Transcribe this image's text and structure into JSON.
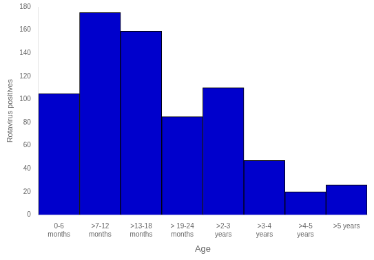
{
  "chart_data": {
    "type": "bar",
    "categories": [
      "0-6\nmonths",
      ">7-12\nmonths",
      ">13-18\nmonths",
      "> 19-24\nmonths",
      ">2-3\nyears",
      ">3-4\nyears",
      ">4-5\nyears",
      ">5 years"
    ],
    "values": [
      105,
      175,
      159,
      85,
      110,
      47,
      20,
      26
    ],
    "color": "#0000CC",
    "xlabel": "Age",
    "ylabel": "Rotavirus positives",
    "ylim": [
      0,
      180
    ],
    "yticks": [
      0,
      20,
      40,
      60,
      80,
      100,
      120,
      140,
      160,
      180
    ],
    "grid": false
  }
}
